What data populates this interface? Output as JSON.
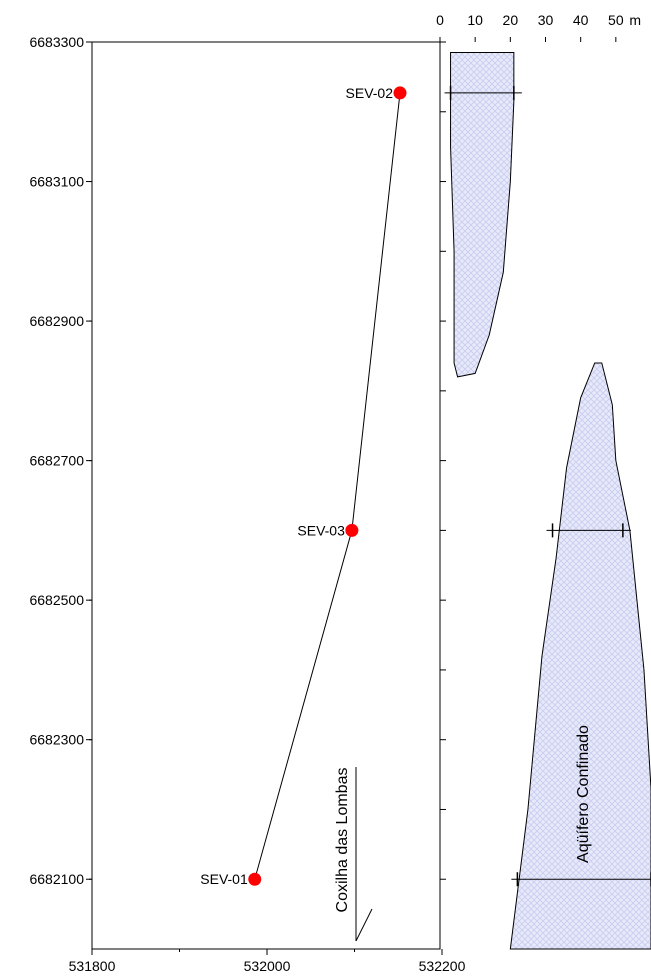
{
  "chart_data": [
    {
      "type": "scatter",
      "title": "",
      "xlabel": "",
      "ylabel": "",
      "xlim": [
        531800,
        532200
      ],
      "ylim": [
        6682000,
        6683300
      ],
      "x_ticks": [
        "531800",
        "532000",
        "532200"
      ],
      "y_ticks": [
        "6682100",
        "6682300",
        "6682500",
        "6682700",
        "6682900",
        "6683100",
        "6683300"
      ],
      "grid": false,
      "marker_color": "#ff0000",
      "series": [
        {
          "points": [
            {
              "label": "SEV-02",
              "x": 532152,
              "y": 6683227
            },
            {
              "label": "SEV-03",
              "x": 532097,
              "y": 6682600
            },
            {
              "label": "SEV-01",
              "x": 531986,
              "y": 6682100
            }
          ]
        }
      ],
      "annotation": {
        "text": "Coxilha das Lombas"
      }
    },
    {
      "type": "area",
      "title": "",
      "xlabel": "m",
      "ylabel": "",
      "xlim": [
        0,
        60
      ],
      "x_ticks": [
        "0",
        "10",
        "20",
        "30",
        "40",
        "50"
      ],
      "x_unit": "m",
      "fill_color": "#c8ccf0",
      "hatch": "crosshatch",
      "bodies": [
        {
          "outline": [
            [
              3,
              6683285
            ],
            [
              21,
              6683285
            ],
            [
              21,
              6683215
            ],
            [
              20,
              6683100
            ],
            [
              18,
              6682970
            ],
            [
              14,
              6682880
            ],
            [
              10,
              6682825
            ],
            [
              5,
              6682820
            ],
            [
              4,
              6682840
            ],
            [
              4,
              6683000
            ],
            [
              3,
              6683150
            ],
            [
              3,
              6683285
            ]
          ]
        },
        {
          "label": "Aqüífero Confinado",
          "outline": [
            [
              20,
              6682000
            ],
            [
              60,
              6682000
            ],
            [
              60,
              6682230
            ],
            [
              58,
              6682400
            ],
            [
              54,
              6682600
            ],
            [
              50,
              6682700
            ],
            [
              49,
              6682780
            ],
            [
              46,
              6682840
            ],
            [
              44,
              6682840
            ],
            [
              40,
              6682790
            ],
            [
              36,
              6682690
            ],
            [
              33,
              6682560
            ],
            [
              29,
              6682420
            ],
            [
              25,
              6682200
            ],
            [
              20,
              6682000
            ]
          ]
        }
      ],
      "depth_markers": [
        {
          "y": 6683227,
          "x": [
            3,
            21
          ]
        },
        {
          "y": 6682600,
          "x": [
            32,
            52
          ]
        },
        {
          "y": 6682100,
          "x": [
            22,
            60
          ]
        }
      ]
    }
  ]
}
